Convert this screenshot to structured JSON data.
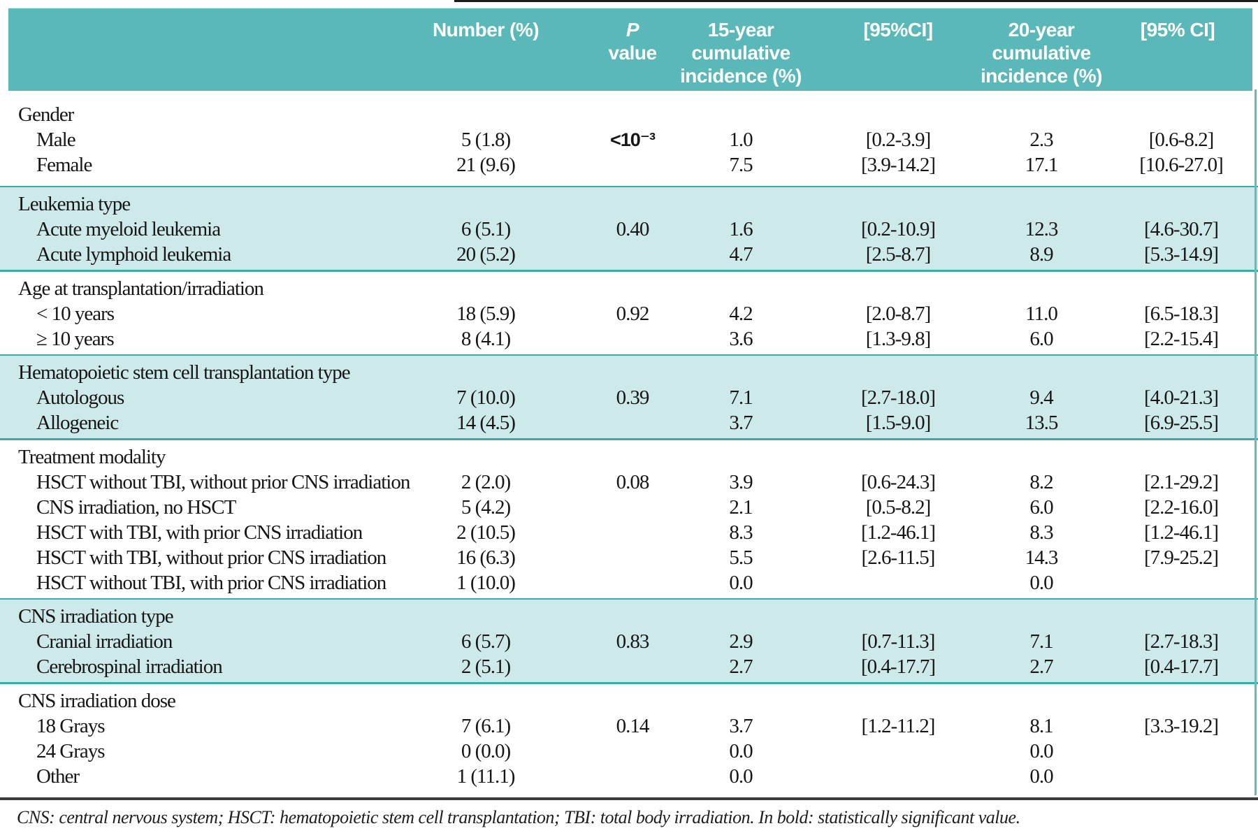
{
  "colors": {
    "header_teal": "#5ab8b8",
    "band_teal": "#cde9e9",
    "band_border": "#39abab",
    "rule_dark": "#3c3c3c",
    "text": "#161616"
  },
  "table": {
    "header": {
      "number": "Number (%)",
      "p_italic": "P",
      "p_rest": " value",
      "incidence15": "15-year\ncumulative\nincidence (%)",
      "ci15": "[95%CI]",
      "incidence20": "20-year\ncumulative\nincidence (%)",
      "ci20": "[95% CI]"
    },
    "sections": [
      {
        "label": "Gender",
        "shaded": false,
        "rows": [
          {
            "label": "Male",
            "number": "5 (1.8)",
            "p": "<10⁻³",
            "p_bold": true,
            "inc15": "1.0",
            "ci15": "[0.2-3.9]",
            "inc20": "2.3",
            "ci20": "[0.6-8.2]"
          },
          {
            "label": "Female",
            "number": "21 (9.6)",
            "p": "",
            "inc15": "7.5",
            "ci15": "[3.9-14.2]",
            "inc20": "17.1",
            "ci20": "[10.6-27.0]"
          }
        ]
      },
      {
        "label": "Leukemia type",
        "shaded": true,
        "rows": [
          {
            "label": "Acute myeloid leukemia",
            "number": "6 (5.1)",
            "p": "0.40",
            "inc15": "1.6",
            "ci15": "[0.2-10.9]",
            "inc20": "12.3",
            "ci20": "[4.6-30.7]"
          },
          {
            "label": "Acute lymphoid leukemia",
            "number": "20 (5.2)",
            "p": "",
            "inc15": "4.7",
            "ci15": "[2.5-8.7]",
            "inc20": "8.9",
            "ci20": "[5.3-14.9]"
          }
        ]
      },
      {
        "label": "Age at transplantation/irradiation",
        "shaded": false,
        "rows": [
          {
            "label": "< 10 years",
            "number": "18 (5.9)",
            "p": "0.92",
            "inc15": "4.2",
            "ci15": "[2.0-8.7]",
            "inc20": "11.0",
            "ci20": "[6.5-18.3]"
          },
          {
            "label": "≥ 10 years",
            "number": "8 (4.1)",
            "p": "",
            "inc15": "3.6",
            "ci15": "[1.3-9.8]",
            "inc20": "6.0",
            "ci20": "[2.2-15.4]"
          }
        ]
      },
      {
        "label": "Hematopoietic stem cell transplantation type",
        "shaded": true,
        "rows": [
          {
            "label": "Autologous",
            "number": "7 (10.0)",
            "p": "0.39",
            "inc15": "7.1",
            "ci15": "[2.7-18.0]",
            "inc20": "9.4",
            "ci20": "[4.0-21.3]"
          },
          {
            "label": "Allogeneic",
            "number": "14 (4.5)",
            "p": "",
            "inc15": "3.7",
            "ci15": "[1.5-9.0]",
            "inc20": "13.5",
            "ci20": "[6.9-25.5]"
          }
        ]
      },
      {
        "label": "Treatment modality",
        "shaded": false,
        "rows": [
          {
            "label": "HSCT without TBI, without prior CNS irradiation",
            "number": "2 (2.0)",
            "p": "0.08",
            "inc15": "3.9",
            "ci15": "[0.6-24.3]",
            "inc20": "8.2",
            "ci20": "[2.1-29.2]"
          },
          {
            "label": "CNS irradiation, no HSCT",
            "number": "5 (4.2)",
            "p": "",
            "inc15": "2.1",
            "ci15": "[0.5-8.2]",
            "inc20": "6.0",
            "ci20": "[2.2-16.0]"
          },
          {
            "label": "HSCT with TBI, with prior CNS irradiation",
            "number": "2 (10.5)",
            "p": "",
            "inc15": "8.3",
            "ci15": "[1.2-46.1]",
            "inc20": "8.3",
            "ci20": "[1.2-46.1]"
          },
          {
            "label": "HSCT with TBI, without prior CNS irradiation",
            "number": "16 (6.3)",
            "p": "",
            "inc15": "5.5",
            "ci15": "[2.6-11.5]",
            "inc20": "14.3",
            "ci20": "[7.9-25.2]"
          },
          {
            "label": "HSCT without TBI, with prior CNS irradiation",
            "number": "1 (10.0)",
            "p": "",
            "inc15": "0.0",
            "ci15": "",
            "inc20": "0.0",
            "ci20": ""
          }
        ]
      },
      {
        "label": "CNS irradiation type",
        "shaded": true,
        "rows": [
          {
            "label": "Cranial irradiation",
            "number": "6 (5.7)",
            "p": "0.83",
            "inc15": "2.9",
            "ci15": "[0.7-11.3]",
            "inc20": "7.1",
            "ci20": "[2.7-18.3]"
          },
          {
            "label": "Cerebrospinal irradiation",
            "number": "2 (5.1)",
            "p": "",
            "inc15": "2.7",
            "ci15": "[0.4-17.7]",
            "inc20": "2.7",
            "ci20": "[0.4-17.7]"
          }
        ]
      },
      {
        "label": "CNS irradiation dose",
        "shaded": false,
        "rows": [
          {
            "label": "18 Grays",
            "number": "7 (6.1)",
            "p": "0.14",
            "inc15": "3.7",
            "ci15": "[1.2-11.2]",
            "inc20": "8.1",
            "ci20": "[3.3-19.2]"
          },
          {
            "label": "24 Grays",
            "number": "0 (0.0)",
            "p": "",
            "inc15": "0.0",
            "ci15": "",
            "inc20": "0.0",
            "ci20": ""
          },
          {
            "label": "Other",
            "number": "1 (11.1)",
            "p": "",
            "inc15": "0.0",
            "ci15": "",
            "inc20": "0.0",
            "ci20": ""
          }
        ]
      }
    ],
    "footnote": "CNS: central nervous system; HSCT: hematopoietic stem cell transplantation; TBI: total body irradiation. In bold: statistically significant value."
  }
}
